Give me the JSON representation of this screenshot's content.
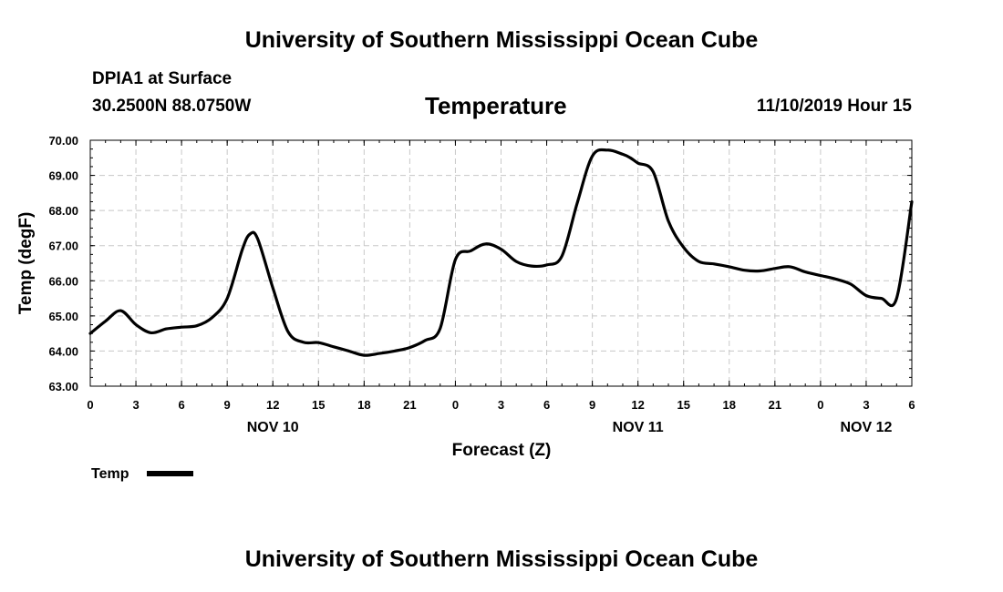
{
  "header": {
    "title": "University of Southern Mississippi Ocean Cube",
    "station": "DPIA1 at Surface",
    "coords": "30.2500N 88.0750W",
    "variable": "Temperature",
    "datetime": "11/10/2019 Hour 15"
  },
  "footer": {
    "title": "University of Southern Mississippi Ocean Cube"
  },
  "chart_data": {
    "type": "line",
    "title": "Temperature",
    "xlabel": "Forecast (Z)",
    "ylabel": "Temp (degF)",
    "ylim": [
      63.0,
      70.0
    ],
    "xlim": [
      0,
      54
    ],
    "y_ticks": [
      "63.00",
      "64.00",
      "65.00",
      "66.00",
      "67.00",
      "68.00",
      "69.00",
      "70.00"
    ],
    "x_ticks": [
      "0",
      "3",
      "6",
      "9",
      "12",
      "15",
      "18",
      "21",
      "0",
      "3",
      "6",
      "9",
      "12",
      "15",
      "18",
      "21",
      "0",
      "3",
      "6"
    ],
    "day_labels": [
      {
        "label": "NOV 10",
        "hour": 12
      },
      {
        "label": "NOV 11",
        "hour": 36
      },
      {
        "label": "NOV 12",
        "hour": 51
      }
    ],
    "grid": true,
    "legend": "bottom-left",
    "color": "#000000",
    "series": [
      {
        "name": "Temp",
        "x": [
          0,
          1,
          2,
          3,
          4,
          5,
          6,
          7,
          8,
          9,
          10,
          10.5,
          11,
          12,
          13,
          14,
          15,
          16,
          17,
          18,
          19,
          20,
          21,
          22,
          23,
          24,
          25,
          26,
          27,
          28,
          29,
          30,
          31,
          32,
          33,
          34,
          35,
          35.5,
          36,
          37,
          38,
          39,
          40,
          41,
          42,
          43,
          44,
          45,
          46,
          47,
          48,
          49,
          50,
          51,
          52,
          53,
          54
        ],
        "values": [
          64.5,
          64.85,
          65.15,
          64.75,
          64.52,
          64.63,
          64.68,
          64.72,
          64.95,
          65.5,
          66.9,
          67.33,
          67.2,
          65.8,
          64.55,
          64.25,
          64.24,
          64.12,
          64.0,
          63.88,
          63.93,
          64.0,
          64.1,
          64.3,
          64.65,
          66.6,
          66.85,
          67.05,
          66.9,
          66.55,
          66.42,
          66.45,
          66.7,
          68.2,
          69.55,
          69.72,
          69.6,
          69.5,
          69.35,
          69.1,
          67.7,
          66.95,
          66.55,
          66.48,
          66.4,
          66.3,
          66.28,
          66.35,
          66.4,
          66.25,
          66.15,
          66.05,
          65.9,
          65.58,
          65.5,
          65.5,
          68.25
        ]
      }
    ]
  }
}
